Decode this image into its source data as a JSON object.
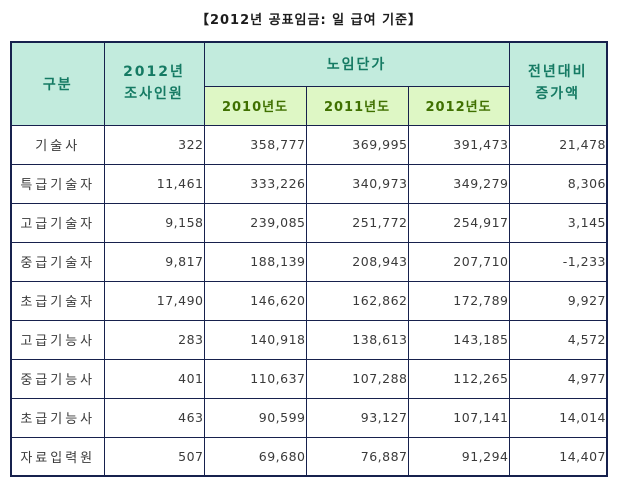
{
  "title": "【2012년 공표임금: 일 급여 기준】",
  "table": {
    "header": {
      "category": "구분",
      "survey_line1": "2012년",
      "survey_line2": "조사인원",
      "wage_group": "노임단가",
      "years": [
        "2010년도",
        "2011년도",
        "2012년도"
      ],
      "increase_line1": "전년대비",
      "increase_line2": "증가액"
    },
    "rows": [
      {
        "label": "기술사",
        "cells": [
          "322",
          "358,777",
          "369,995",
          "391,473",
          "21,478"
        ]
      },
      {
        "label": "특급기술자",
        "cells": [
          "11,461",
          "333,226",
          "340,973",
          "349,279",
          "8,306"
        ]
      },
      {
        "label": "고급기술자",
        "cells": [
          "9,158",
          "239,085",
          "251,772",
          "254,917",
          "3,145"
        ]
      },
      {
        "label": "중급기술자",
        "cells": [
          "9,817",
          "188,139",
          "208,943",
          "207,710",
          "-1,233"
        ]
      },
      {
        "label": "초급기술자",
        "cells": [
          "17,490",
          "146,620",
          "162,862",
          "172,789",
          "9,927"
        ]
      },
      {
        "label": "고급기능사",
        "cells": [
          "283",
          "140,918",
          "138,613",
          "143,185",
          "4,572"
        ]
      },
      {
        "label": "중급기능사",
        "cells": [
          "401",
          "110,637",
          "107,288",
          "112,265",
          "4,977"
        ]
      },
      {
        "label": "초급기능사",
        "cells": [
          "463",
          "90,599",
          "93,127",
          "107,141",
          "14,014"
        ]
      },
      {
        "label": "자료입력원",
        "cells": [
          "507",
          "69,680",
          "76,887",
          "91,294",
          "14,407"
        ]
      }
    ],
    "colors": {
      "header_bg": "#c2ebdd",
      "header_text": "#157a63",
      "year_header_bg": "#def7c5",
      "year_header_text": "#3f7000",
      "border": "#17214d",
      "body_text": "#3a3a3a"
    }
  },
  "chart_data": {
    "type": "table",
    "title": "【2012년 공표임금: 일 급여 기준】",
    "columns": [
      "구분",
      "2012년 조사인원",
      "노임단가 2010년도",
      "노임단가 2011년도",
      "노임단가 2012년도",
      "전년대비 증가액"
    ],
    "rows": [
      [
        "기술사",
        322,
        358777,
        369995,
        391473,
        21478
      ],
      [
        "특급기술자",
        11461,
        333226,
        340973,
        349279,
        8306
      ],
      [
        "고급기술자",
        9158,
        239085,
        251772,
        254917,
        3145
      ],
      [
        "중급기술자",
        9817,
        188139,
        208943,
        207710,
        -1233
      ],
      [
        "초급기술자",
        17490,
        146620,
        162862,
        172789,
        9927
      ],
      [
        "고급기능사",
        283,
        140918,
        138613,
        143185,
        4572
      ],
      [
        "중급기능사",
        401,
        110637,
        107288,
        112265,
        4977
      ],
      [
        "초급기능사",
        463,
        90599,
        93127,
        107141,
        14014
      ],
      [
        "자료입력원",
        507,
        69680,
        76887,
        91294,
        14407
      ]
    ]
  }
}
